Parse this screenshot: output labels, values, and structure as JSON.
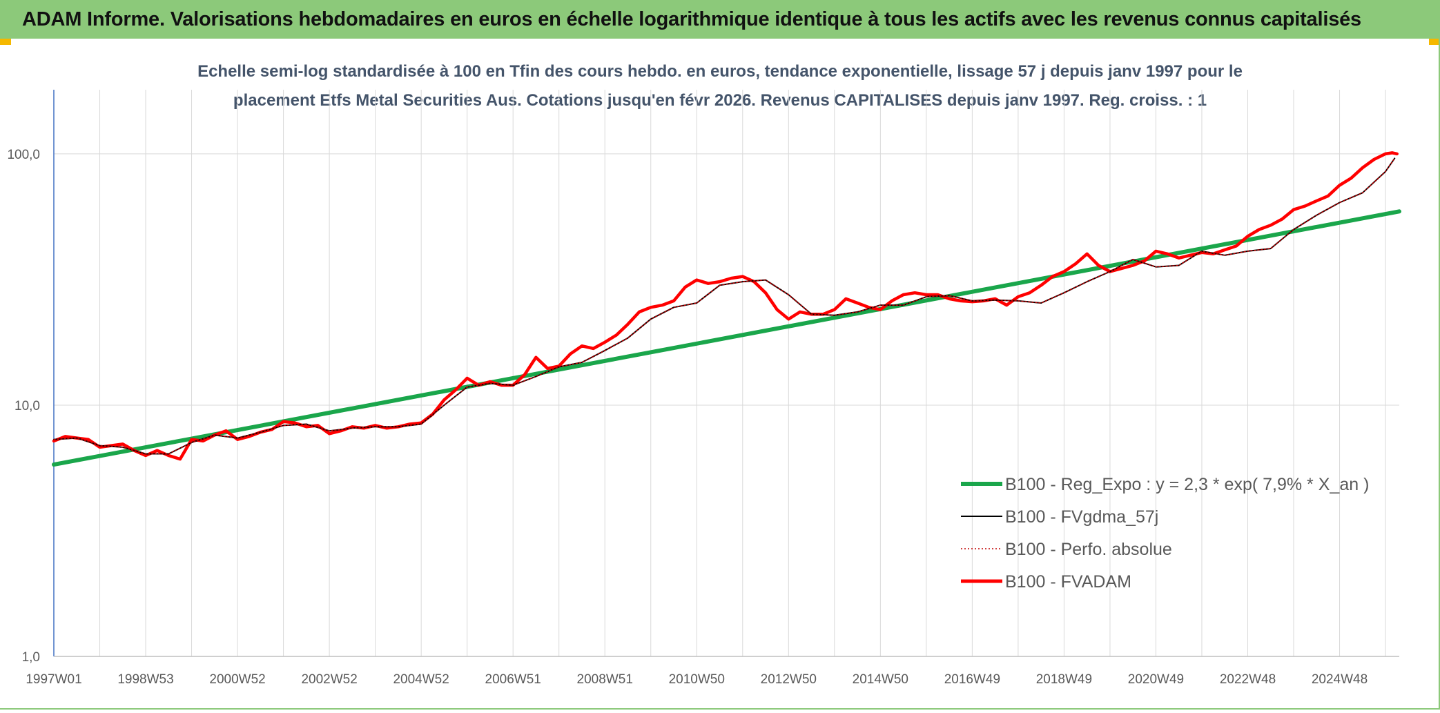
{
  "header": {
    "title": "ADAM Informe. Valorisations hebdomadaires en euros en échelle logarithmique identique à tous les actifs avec les revenus connus capitalisés"
  },
  "colors": {
    "header_bg": "#8cc97a",
    "accent": "#f5b800",
    "regression": "#1aa64b",
    "smoothed": "#000000",
    "perf_absolue": "#c00000",
    "fvadam": "#ff0000",
    "grid": "#d9d9d9",
    "axis": "#4472c4"
  },
  "chart_data": {
    "type": "line",
    "title_lines": [
      "Echelle semi-log standardisée à 100 en Tfin des cours hebdo. en euros, tendance exponentielle, lissage 57 j depuis janv 1997 pour le",
      "placement Etfs Metal Securities Aus. Cotations jusqu'en févr 2026. Revenus CAPITALISES depuis janv 1997. Reg. croiss. : 1"
    ],
    "y_scale": "log",
    "ylim": [
      1,
      180
    ],
    "y_ticks": [
      {
        "value": 1,
        "label": "1,0"
      },
      {
        "value": 10,
        "label": "10,0"
      },
      {
        "value": 100,
        "label": "100,0"
      }
    ],
    "xlim": [
      1997.0,
      2026.3
    ],
    "x_ticks": [
      {
        "x": 1997.0,
        "label": "1997W01"
      },
      {
        "x": 1999.0,
        "label": "1998W53"
      },
      {
        "x": 2001.0,
        "label": "2000W52"
      },
      {
        "x": 2003.0,
        "label": "2002W52"
      },
      {
        "x": 2005.0,
        "label": "2004W52"
      },
      {
        "x": 2007.0,
        "label": "2006W51"
      },
      {
        "x": 2009.0,
        "label": "2008W51"
      },
      {
        "x": 2011.0,
        "label": "2010W50"
      },
      {
        "x": 2013.0,
        "label": "2012W50"
      },
      {
        "x": 2015.0,
        "label": "2014W50"
      },
      {
        "x": 2017.0,
        "label": "2016W49"
      },
      {
        "x": 2019.0,
        "label": "2018W49"
      },
      {
        "x": 2021.0,
        "label": "2020W49"
      },
      {
        "x": 2023.0,
        "label": "2022W48"
      },
      {
        "x": 2025.0,
        "label": "2024W48"
      }
    ],
    "grid": true,
    "legend_position": "bottom-right",
    "series": [
      {
        "name": "B100 - Reg_Expo : y = 2,3 * exp( 7,9% *  X_an )",
        "style": "solid-thick",
        "x": [
          1997.0,
          2026.3
        ],
        "y": [
          5.8,
          59.0
        ]
      },
      {
        "name": "B100 - FVgdma_57j",
        "style": "solid-thin",
        "x": [
          1997.0,
          1997.5,
          1998.0,
          1998.5,
          1999.0,
          1999.5,
          2000.0,
          2000.5,
          2001.0,
          2001.5,
          2002.0,
          2002.5,
          2003.0,
          2003.5,
          2004.0,
          2004.5,
          2005.0,
          2005.5,
          2006.0,
          2006.5,
          2007.0,
          2007.5,
          2008.0,
          2008.5,
          2009.0,
          2009.5,
          2010.0,
          2010.5,
          2011.0,
          2011.5,
          2012.0,
          2012.5,
          2013.0,
          2013.5,
          2014.0,
          2014.5,
          2015.0,
          2015.5,
          2016.0,
          2016.5,
          2017.0,
          2017.5,
          2018.0,
          2018.5,
          2019.0,
          2019.5,
          2020.0,
          2020.5,
          2021.0,
          2021.5,
          2022.0,
          2022.5,
          2023.0,
          2023.5,
          2024.0,
          2024.5,
          2025.0,
          2025.5,
          2026.0,
          2026.2
        ],
        "y": [
          7.3,
          7.4,
          6.9,
          6.8,
          6.4,
          6.4,
          7.1,
          7.6,
          7.4,
          7.8,
          8.3,
          8.4,
          7.9,
          8.1,
          8.2,
          8.2,
          8.4,
          10.0,
          11.8,
          12.2,
          12.0,
          13.0,
          14.2,
          14.8,
          16.5,
          18.5,
          22.0,
          24.5,
          25.5,
          30.0,
          31.0,
          31.5,
          27.5,
          23.0,
          22.8,
          23.5,
          25.0,
          25.0,
          27.0,
          27.3,
          26.0,
          26.2,
          26.0,
          25.5,
          28.0,
          31.0,
          34.0,
          38.0,
          35.5,
          36.0,
          41.0,
          39.5,
          41.0,
          42.0,
          50.0,
          57.0,
          64.0,
          70.0,
          85.0,
          96.0
        ]
      },
      {
        "name": "B100 - Perfo. absolue",
        "style": "dotted",
        "x": [
          1997.0,
          1997.5,
          1998.0,
          1998.5,
          1999.0,
          1999.5,
          2000.0,
          2000.5,
          2001.0,
          2001.5,
          2002.0,
          2002.5,
          2003.0,
          2003.5,
          2004.0,
          2004.5,
          2005.0,
          2005.5,
          2006.0,
          2006.5,
          2007.0,
          2007.5,
          2008.0,
          2008.5,
          2009.0,
          2009.5,
          2010.0,
          2010.5,
          2011.0,
          2011.5,
          2012.0,
          2012.5,
          2013.0,
          2013.5,
          2014.0,
          2014.5,
          2015.0,
          2015.5,
          2016.0,
          2016.5,
          2017.0,
          2017.5,
          2018.0,
          2018.5,
          2019.0,
          2019.5,
          2020.0,
          2020.5,
          2021.0,
          2021.5,
          2022.0,
          2022.5,
          2023.0,
          2023.5,
          2024.0,
          2024.5,
          2025.0,
          2025.5,
          2026.0,
          2026.2
        ],
        "y": [
          7.3,
          7.4,
          6.9,
          6.8,
          6.4,
          6.4,
          7.1,
          7.6,
          7.4,
          7.8,
          8.3,
          8.4,
          7.9,
          8.1,
          8.2,
          8.2,
          8.4,
          10.0,
          11.8,
          12.2,
          12.0,
          13.0,
          14.2,
          14.8,
          16.5,
          18.5,
          22.0,
          24.5,
          25.5,
          30.0,
          31.0,
          31.5,
          27.5,
          23.0,
          22.8,
          23.5,
          25.0,
          25.0,
          27.0,
          27.3,
          26.0,
          26.2,
          26.0,
          25.5,
          28.0,
          31.0,
          34.0,
          38.0,
          35.5,
          36.0,
          41.0,
          39.5,
          41.0,
          42.0,
          50.0,
          57.0,
          64.0,
          70.0,
          85.0,
          96.0
        ]
      },
      {
        "name": "B100 - FVADAM",
        "style": "solid-thick",
        "x": [
          1997.0,
          1997.25,
          1997.5,
          1997.75,
          1998.0,
          1998.25,
          1998.5,
          1998.75,
          1999.0,
          1999.25,
          1999.5,
          1999.75,
          2000.0,
          2000.25,
          2000.5,
          2000.75,
          2001.0,
          2001.25,
          2001.5,
          2001.75,
          2002.0,
          2002.25,
          2002.5,
          2002.75,
          2003.0,
          2003.25,
          2003.5,
          2003.75,
          2004.0,
          2004.25,
          2004.5,
          2004.75,
          2005.0,
          2005.25,
          2005.5,
          2005.75,
          2006.0,
          2006.25,
          2006.5,
          2006.75,
          2007.0,
          2007.25,
          2007.5,
          2007.75,
          2008.0,
          2008.25,
          2008.5,
          2008.75,
          2009.0,
          2009.25,
          2009.5,
          2009.75,
          2010.0,
          2010.25,
          2010.5,
          2010.75,
          2011.0,
          2011.25,
          2011.5,
          2011.75,
          2012.0,
          2012.25,
          2012.5,
          2012.75,
          2013.0,
          2013.25,
          2013.5,
          2013.75,
          2014.0,
          2014.25,
          2014.5,
          2014.75,
          2015.0,
          2015.25,
          2015.5,
          2015.75,
          2016.0,
          2016.25,
          2016.5,
          2016.75,
          2017.0,
          2017.25,
          2017.5,
          2017.75,
          2018.0,
          2018.25,
          2018.5,
          2018.75,
          2019.0,
          2019.25,
          2019.5,
          2019.75,
          2020.0,
          2020.25,
          2020.5,
          2020.75,
          2021.0,
          2021.25,
          2021.5,
          2021.75,
          2022.0,
          2022.25,
          2022.5,
          2022.75,
          2023.0,
          2023.25,
          2023.5,
          2023.75,
          2024.0,
          2024.25,
          2024.5,
          2024.75,
          2025.0,
          2025.25,
          2025.5,
          2025.75,
          2026.0,
          2026.15,
          2026.25
        ],
        "y": [
          7.2,
          7.5,
          7.4,
          7.3,
          6.8,
          6.9,
          7.0,
          6.6,
          6.3,
          6.6,
          6.3,
          6.1,
          7.3,
          7.2,
          7.6,
          7.9,
          7.3,
          7.5,
          7.8,
          8.0,
          8.6,
          8.5,
          8.2,
          8.3,
          7.7,
          7.9,
          8.2,
          8.1,
          8.3,
          8.1,
          8.2,
          8.4,
          8.5,
          9.2,
          10.5,
          11.5,
          12.8,
          12.0,
          12.4,
          12.0,
          12.0,
          13.2,
          15.5,
          14.0,
          14.3,
          16.0,
          17.2,
          16.8,
          17.8,
          19.0,
          21.0,
          23.5,
          24.5,
          25.0,
          26.0,
          29.5,
          31.5,
          30.5,
          31.0,
          32.0,
          32.5,
          31.0,
          28.0,
          24.0,
          22.0,
          23.5,
          23.0,
          23.0,
          24.0,
          26.5,
          25.5,
          24.5,
          24.0,
          26.0,
          27.5,
          28.0,
          27.5,
          27.5,
          26.5,
          26.0,
          25.8,
          26.0,
          26.5,
          25.0,
          27.0,
          28.0,
          30.0,
          32.5,
          34.0,
          36.5,
          40.0,
          36.0,
          34.0,
          35.0,
          36.0,
          37.5,
          41.0,
          40.0,
          38.5,
          39.5,
          40.5,
          40.0,
          41.5,
          43.0,
          47.0,
          50.0,
          52.0,
          55.0,
          60.0,
          62.0,
          65.0,
          68.0,
          75.0,
          80.0,
          88.0,
          95.0,
          100.0,
          101.0,
          100.0
        ]
      }
    ]
  }
}
